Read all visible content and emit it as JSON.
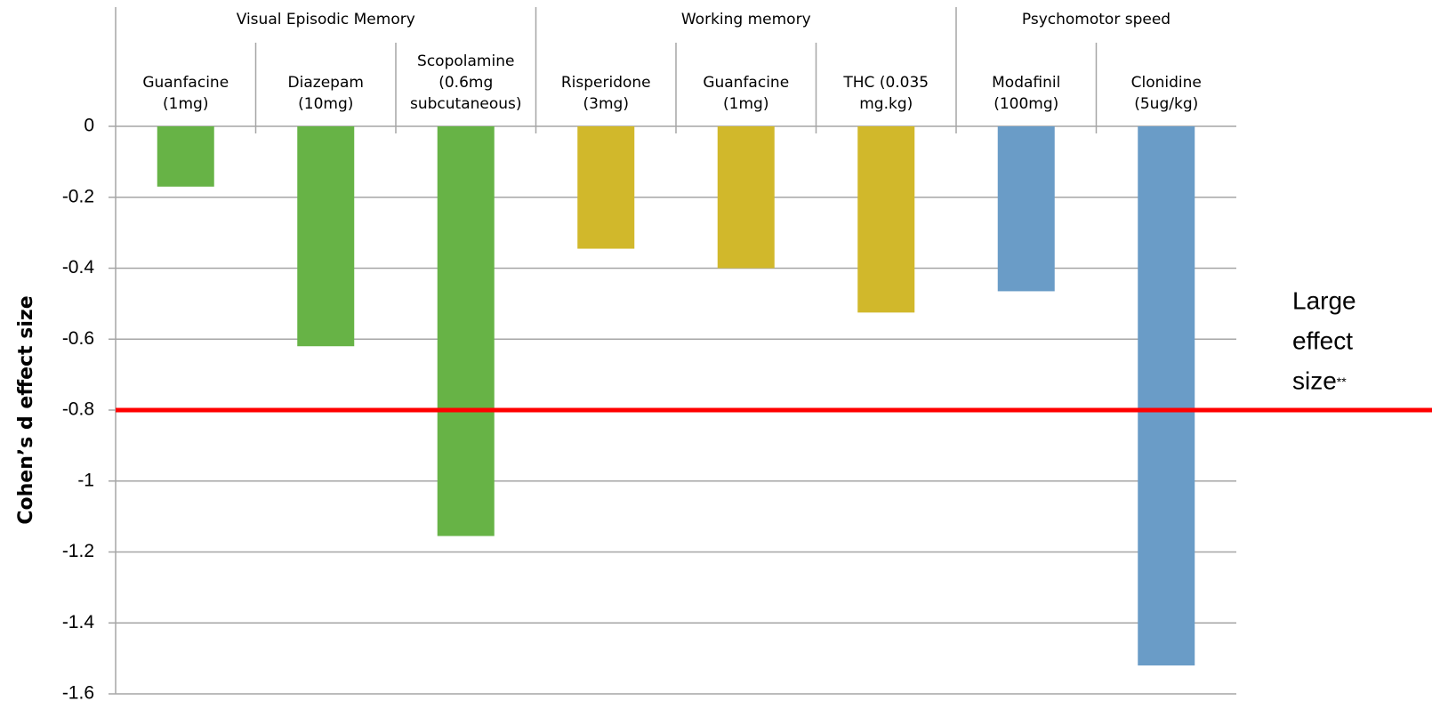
{
  "chart_data": {
    "type": "bar",
    "y_label": "Cohen’s d effect size",
    "ylim": [
      -1.6,
      0
    ],
    "yticks": [
      0,
      -0.2,
      -0.4,
      -0.6,
      -0.8,
      -1,
      -1.2,
      -1.4,
      -1.6
    ],
    "grid": true,
    "groups": [
      {
        "name": "Visual Episodic Memory",
        "color": "#67b346",
        "categories": [
          [
            "Guanfacine",
            "(1mg)"
          ],
          [
            "Diazepam",
            "(10mg)"
          ],
          [
            "Scopolamine",
            "(0.6mg",
            "subcutaneous)"
          ]
        ],
        "values": [
          -0.17,
          -0.62,
          -1.155
        ]
      },
      {
        "name": "Working memory",
        "color": "#d1b82b",
        "categories": [
          [
            "Risperidone",
            "(3mg)"
          ],
          [
            "Guanfacine",
            "(1mg)"
          ],
          [
            "THC (0.035",
            "mg.kg)"
          ]
        ],
        "values": [
          -0.345,
          -0.4,
          -0.525
        ]
      },
      {
        "name": "Psychomotor speed",
        "color": "#6a9cc7",
        "categories": [
          [
            "Modafinil",
            "(100mg)"
          ],
          [
            "Clonidine",
            "(5ug/kg)"
          ]
        ],
        "values": [
          -0.465,
          -1.52
        ]
      }
    ],
    "reference_line": {
      "value": -0.8,
      "color": "#ff0000",
      "label": [
        "Large",
        "effect",
        "size"
      ],
      "label_suffix": "**"
    }
  }
}
